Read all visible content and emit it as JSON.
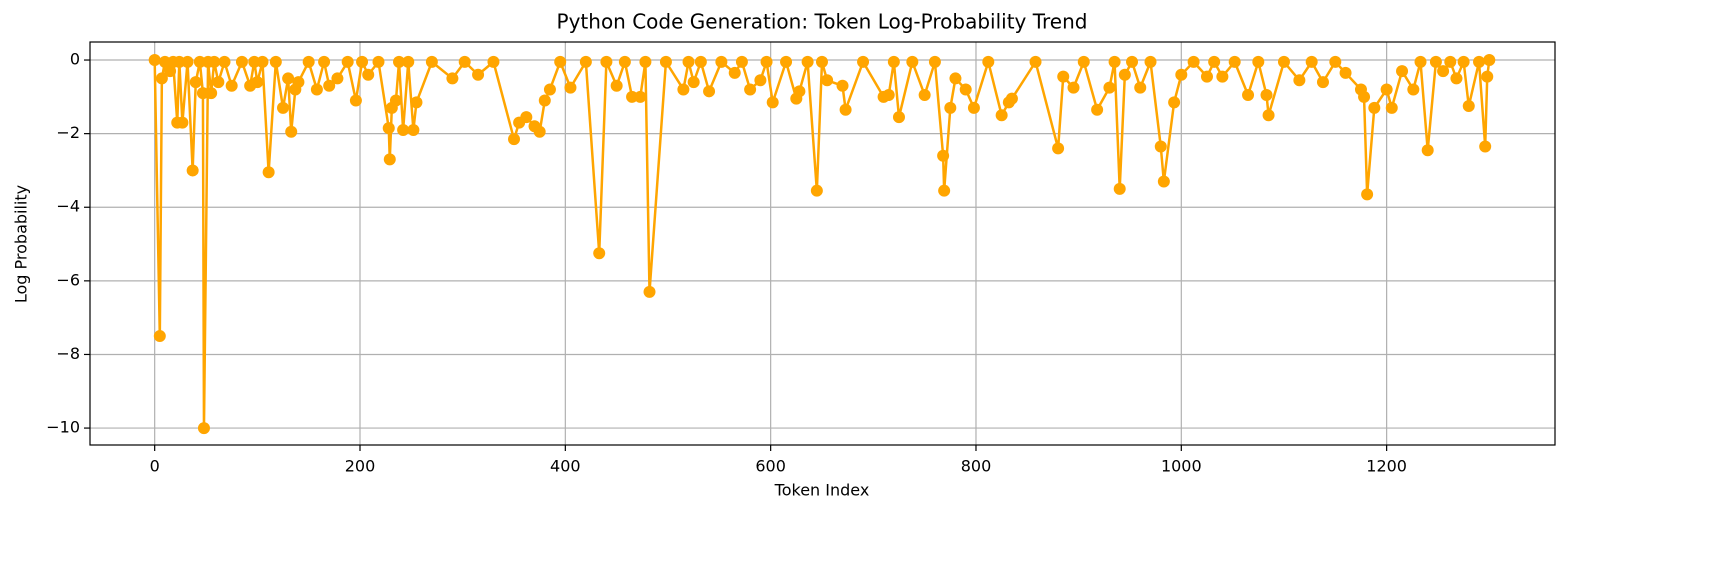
{
  "chart_data": {
    "type": "line",
    "title": "Python Code Generation: Token Log-Probability Trend",
    "xlabel": "Token Index",
    "ylabel": "Log Probability",
    "x": [
      0,
      5,
      7,
      10,
      15,
      18,
      22,
      24,
      27,
      32,
      37,
      40,
      44,
      47,
      48,
      52,
      55,
      58,
      62,
      68,
      75,
      85,
      93,
      97,
      100,
      105,
      111,
      118,
      125,
      130,
      133,
      137,
      140,
      150,
      158,
      165,
      170,
      178,
      188,
      196,
      202,
      208,
      218,
      228,
      229,
      231,
      235,
      238,
      242,
      247,
      252,
      255,
      270,
      290,
      302,
      315,
      330,
      350,
      355,
      362,
      370,
      375,
      380,
      385,
      395,
      405,
      420,
      433,
      440,
      450,
      458,
      465,
      473,
      478,
      482,
      498,
      515,
      520,
      525,
      532,
      540,
      552,
      565,
      572,
      580,
      590,
      596,
      602,
      615,
      625,
      628,
      636,
      645,
      650,
      655,
      670,
      673,
      690,
      710,
      715,
      720,
      725,
      738,
      750,
      760,
      768,
      769,
      775,
      780,
      790,
      798,
      812,
      825,
      832,
      835,
      858,
      880,
      885,
      895,
      905,
      918,
      930,
      935,
      940,
      945,
      952,
      960,
      970,
      980,
      983,
      993,
      1000,
      1012,
      1025,
      1032,
      1040,
      1052,
      1065,
      1075,
      1083,
      1085,
      1100,
      1115,
      1127,
      1138,
      1150,
      1160,
      1175,
      1178,
      1181,
      1188,
      1200,
      1205,
      1215,
      1226,
      1233,
      1240,
      1248,
      1255,
      1262,
      1268,
      1275,
      1280,
      1290,
      1296,
      1298,
      1300
    ],
    "series": [
      {
        "name": "Log Probability",
        "color": "#ffa500",
        "values": [
          0,
          -7.5,
          -0.5,
          -0.05,
          -0.3,
          -0.05,
          -1.7,
          -0.05,
          -1.7,
          -0.05,
          -3.0,
          -0.6,
          -0.05,
          -0.9,
          -10,
          -0.05,
          -0.9,
          -0.05,
          -0.6,
          -0.05,
          -0.7,
          -0.05,
          -0.7,
          -0.05,
          -0.6,
          -0.05,
          -3.05,
          -0.05,
          -1.3,
          -0.5,
          -1.95,
          -0.8,
          -0.6,
          -0.05,
          -0.8,
          -0.05,
          -0.7,
          -0.5,
          -0.05,
          -1.1,
          -0.05,
          -0.4,
          -0.05,
          -1.85,
          -2.7,
          -1.3,
          -1.1,
          -0.05,
          -1.9,
          -0.05,
          -1.9,
          -1.15,
          -0.05,
          -0.5,
          -0.05,
          -0.4,
          -0.05,
          -2.15,
          -1.7,
          -1.55,
          -1.8,
          -1.95,
          -1.1,
          -0.8,
          -0.05,
          -0.75,
          -0.05,
          -5.25,
          -0.05,
          -0.7,
          -0.05,
          -1.0,
          -1.0,
          -0.05,
          -6.3,
          -0.05,
          -0.8,
          -0.05,
          -0.6,
          -0.05,
          -0.85,
          -0.05,
          -0.35,
          -0.05,
          -0.8,
          -0.55,
          -0.05,
          -1.15,
          -0.05,
          -1.05,
          -0.85,
          -0.05,
          -3.55,
          -0.05,
          -0.55,
          -0.7,
          -1.35,
          -0.05,
          -1.0,
          -0.95,
          -0.05,
          -1.55,
          -0.05,
          -0.95,
          -0.05,
          -2.6,
          -3.55,
          -1.3,
          -0.5,
          -0.8,
          -1.3,
          -0.05,
          -1.5,
          -1.15,
          -1.05,
          -0.05,
          -2.4,
          -0.45,
          -0.75,
          -0.05,
          -1.35,
          -0.75,
          -0.05,
          -3.5,
          -0.4,
          -0.05,
          -0.75,
          -0.05,
          -2.35,
          -3.3,
          -1.15,
          -0.4,
          -0.05,
          -0.45,
          -0.05,
          -0.45,
          -0.05,
          -0.95,
          -0.05,
          -0.95,
          -1.5,
          -0.05,
          -0.55,
          -0.05,
          -0.6,
          -0.05,
          -0.35,
          -0.8,
          -1.0,
          -3.65,
          -1.3,
          -0.8,
          -1.3,
          -0.3,
          -0.8,
          -0.05,
          -2.45,
          -0.05,
          -0.3,
          -0.05,
          -0.5,
          -0.05,
          -1.25,
          -0.05,
          -2.35,
          -0.45,
          0
        ]
      }
    ],
    "xlim": [
      -63,
      1364
    ],
    "ylim": [
      -10.46,
      0.49
    ],
    "xticks": [
      0,
      200,
      400,
      600,
      800,
      1000,
      1200
    ],
    "yticks": [
      0,
      {
        "value": -2,
        "label": "−2"
      },
      {
        "value": -4,
        "label": "−4"
      },
      {
        "value": -6,
        "label": "−6"
      },
      {
        "value": -8,
        "label": "−8"
      },
      {
        "value": -10,
        "label": "−10"
      }
    ],
    "grid": true
  }
}
